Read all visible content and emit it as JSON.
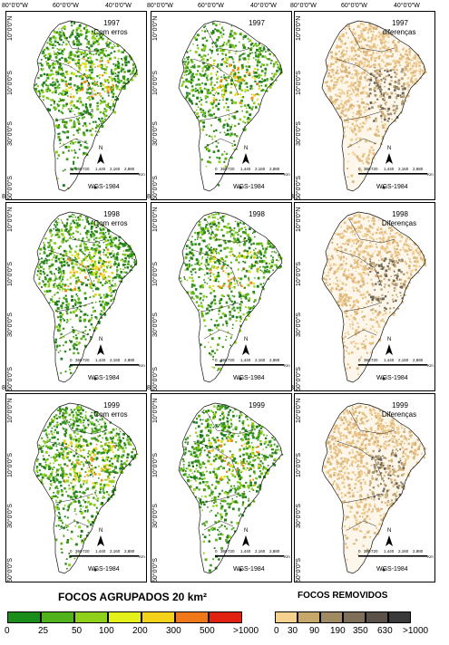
{
  "axes": {
    "top": [
      "80°0'0\"W",
      "60°0'0\"W",
      "40°0'0\"W"
    ],
    "left": [
      "10°0'0\"N",
      "10°0'0\"S",
      "30°0'0\"S",
      "50°0'0\"S"
    ]
  },
  "panels": [
    {
      "row": 0,
      "col": 0,
      "year": "1997",
      "subtitle": "Com erros",
      "style": "green",
      "intensity": 1.0
    },
    {
      "row": 0,
      "col": 1,
      "year": "1997",
      "subtitle": "",
      "style": "green",
      "intensity": 0.8
    },
    {
      "row": 0,
      "col": 2,
      "year": "1997",
      "subtitle": "diferenças",
      "style": "tan",
      "intensity": 1.0
    },
    {
      "row": 1,
      "col": 0,
      "year": "1998",
      "subtitle": "Com erros",
      "style": "green",
      "intensity": 1.0
    },
    {
      "row": 1,
      "col": 1,
      "year": "1998",
      "subtitle": "",
      "style": "green",
      "intensity": 0.75
    },
    {
      "row": 1,
      "col": 2,
      "year": "1998",
      "subtitle": "Diferenças",
      "style": "tan",
      "intensity": 0.9
    },
    {
      "row": 2,
      "col": 0,
      "year": "1999",
      "subtitle": "Com erros",
      "style": "green",
      "intensity": 1.0
    },
    {
      "row": 2,
      "col": 1,
      "year": "1999",
      "subtitle": "",
      "style": "green",
      "intensity": 0.85
    },
    {
      "row": 2,
      "col": 2,
      "year": "1999",
      "subtitle": "Diferenças",
      "style": "tan",
      "intensity": 1.0
    }
  ],
  "map_text": {
    "north": "N",
    "scale_labels": [
      "0",
      "360",
      "720",
      "1,440",
      "2,160",
      "2,880"
    ],
    "scale_unit": "Km",
    "datum": "WGS-1984"
  },
  "legend_focos": {
    "title": "FOCOS AGRUPADOS 20 km²",
    "colors": [
      "#1a8c1a",
      "#4fb21a",
      "#8fd11a",
      "#e3f01a",
      "#f5d21a",
      "#f07818",
      "#e02010"
    ],
    "ticks": [
      "0",
      "25",
      "50",
      "100",
      "200",
      "300",
      "500",
      ">1000"
    ]
  },
  "legend_removidos": {
    "title": "FOCOS REMOVIDOS",
    "colors": [
      "#f5d08e",
      "#c8a86a",
      "#a08a62",
      "#7e7058",
      "#5a5248",
      "#3a3a3a"
    ],
    "ticks": [
      "0",
      "30",
      "90",
      "190",
      "350",
      "630",
      ">1000"
    ]
  }
}
